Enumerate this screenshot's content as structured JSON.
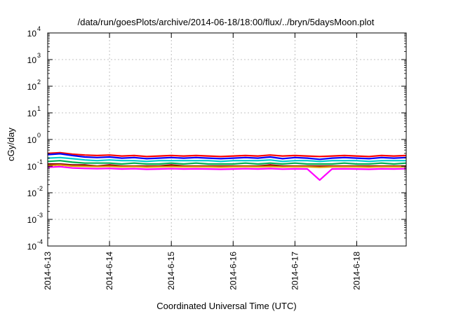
{
  "chart_data": {
    "type": "line",
    "title": "/data/run/goesPlots/archive/2014-06-18/18:00/flux/../bryn/5daysMoon.plot",
    "xlabel": "Coordinated Universal Time (UTC)",
    "ylabel": "cGy/day",
    "y_scale": "log",
    "ylim": [
      0.0001,
      10000
    ],
    "xlim": [
      0,
      5.8
    ],
    "grid": true,
    "x_ticks": [
      {
        "value": 0,
        "label": "2014-6-13"
      },
      {
        "value": 1,
        "label": "2014-6-14"
      },
      {
        "value": 2,
        "label": "2014-6-15"
      },
      {
        "value": 3,
        "label": "2014-6-16"
      },
      {
        "value": 4,
        "label": "2014-6-17"
      },
      {
        "value": 5,
        "label": "2014-6-18"
      }
    ],
    "y_ticks": [
      {
        "value": 0.0001,
        "base": "10",
        "exp": "-4"
      },
      {
        "value": 0.001,
        "base": "10",
        "exp": "-3"
      },
      {
        "value": 0.01,
        "base": "10",
        "exp": "-2"
      },
      {
        "value": 0.1,
        "base": "10",
        "exp": "-1"
      },
      {
        "value": 1,
        "base": "10",
        "exp": "0"
      },
      {
        "value": 10,
        "base": "10",
        "exp": "1"
      },
      {
        "value": 100,
        "base": "10",
        "exp": "2"
      },
      {
        "value": 1000,
        "base": "10",
        "exp": "3"
      },
      {
        "value": 10000,
        "base": "10",
        "exp": "4"
      }
    ],
    "x": [
      0,
      0.2,
      0.4,
      0.6,
      0.8,
      1.0,
      1.2,
      1.4,
      1.6,
      1.8,
      2.0,
      2.2,
      2.4,
      2.6,
      2.8,
      3.0,
      3.2,
      3.4,
      3.6,
      3.8,
      4.0,
      4.2,
      4.4,
      4.6,
      4.8,
      5.0,
      5.2,
      5.4,
      5.6,
      5.8
    ],
    "series": [
      {
        "color": "#ff0000",
        "values": [
          0.3,
          0.32,
          0.28,
          0.26,
          0.25,
          0.26,
          0.24,
          0.25,
          0.23,
          0.24,
          0.25,
          0.24,
          0.25,
          0.24,
          0.23,
          0.24,
          0.25,
          0.24,
          0.26,
          0.24,
          0.25,
          0.24,
          0.23,
          0.24,
          0.25,
          0.24,
          0.23,
          0.25,
          0.24,
          0.25
        ]
      },
      {
        "color": "#0000ff",
        "values": [
          0.27,
          0.29,
          0.25,
          0.22,
          0.21,
          0.22,
          0.2,
          0.21,
          0.19,
          0.2,
          0.21,
          0.2,
          0.21,
          0.2,
          0.19,
          0.2,
          0.21,
          0.2,
          0.22,
          0.19,
          0.21,
          0.2,
          0.18,
          0.2,
          0.21,
          0.2,
          0.19,
          0.21,
          0.2,
          0.21
        ]
      },
      {
        "color": "#00cccc",
        "values": [
          0.2,
          0.21,
          0.19,
          0.17,
          0.16,
          0.17,
          0.16,
          0.16,
          0.15,
          0.16,
          0.16,
          0.16,
          0.16,
          0.16,
          0.15,
          0.16,
          0.16,
          0.16,
          0.17,
          0.15,
          0.16,
          0.16,
          0.15,
          0.16,
          0.16,
          0.16,
          0.15,
          0.16,
          0.16,
          0.16
        ]
      },
      {
        "color": "#00b050",
        "values": [
          0.15,
          0.16,
          0.14,
          0.13,
          0.13,
          0.13,
          0.12,
          0.13,
          0.12,
          0.12,
          0.13,
          0.12,
          0.13,
          0.12,
          0.12,
          0.12,
          0.13,
          0.12,
          0.13,
          0.12,
          0.13,
          0.12,
          0.12,
          0.12,
          0.13,
          0.12,
          0.12,
          0.13,
          0.12,
          0.13
        ]
      },
      {
        "color": "#8b0000",
        "values": [
          0.12,
          0.12,
          0.11,
          0.11,
          0.1,
          0.11,
          0.1,
          0.1,
          0.1,
          0.1,
          0.11,
          0.1,
          0.1,
          0.1,
          0.1,
          0.1,
          0.1,
          0.1,
          0.11,
          0.1,
          0.1,
          0.1,
          0.1,
          0.1,
          0.1,
          0.1,
          0.1,
          0.1,
          0.1,
          0.1
        ]
      },
      {
        "color": "#e0a000",
        "values": [
          0.105,
          0.11,
          0.1,
          0.098,
          0.096,
          0.098,
          0.094,
          0.096,
          0.092,
          0.094,
          0.096,
          0.094,
          0.095,
          0.094,
          0.092,
          0.094,
          0.096,
          0.094,
          0.097,
          0.093,
          0.095,
          0.094,
          0.09,
          0.094,
          0.095,
          0.094,
          0.092,
          0.095,
          0.094,
          0.095
        ]
      },
      {
        "color": "#ff00ff",
        "values": [
          0.09,
          0.095,
          0.085,
          0.082,
          0.08,
          0.082,
          0.078,
          0.08,
          0.076,
          0.078,
          0.08,
          0.078,
          0.079,
          0.078,
          0.076,
          0.078,
          0.08,
          0.078,
          0.081,
          0.077,
          0.079,
          0.078,
          0.03,
          0.078,
          0.079,
          0.078,
          0.076,
          0.079,
          0.078,
          0.08
        ]
      }
    ]
  }
}
